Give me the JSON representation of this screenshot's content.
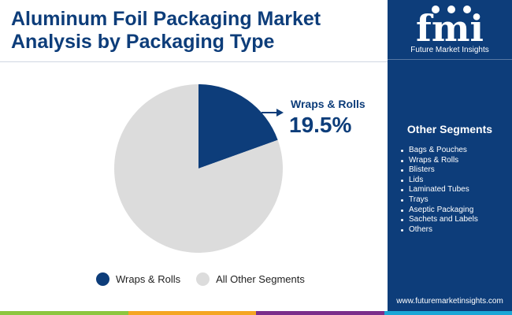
{
  "header": {
    "title_line1": "Aluminum Foil Packaging Market",
    "title_line2": "Analysis by Packaging Type"
  },
  "brand": {
    "logo_text": "fmi",
    "name": "Future Market Insights",
    "website": "www.futuremarketinsights.com"
  },
  "chart_data": {
    "type": "pie",
    "slices": [
      {
        "label": "Wraps & Rolls",
        "value": 19.5,
        "color": "#0d3d7a"
      },
      {
        "label": "All Other Segments",
        "value": 80.5,
        "color": "#dcdcdc"
      }
    ],
    "annotation": {
      "label": "Wraps & Rolls",
      "value_text": "19.5%"
    },
    "legend": [
      "Wraps & Rolls",
      "All Other Segments"
    ],
    "legend_position": "bottom"
  },
  "sidebar": {
    "heading": "Other Segments",
    "items": [
      "Bags & Pouches",
      "Wraps & Rolls",
      "Blisters",
      "Lids",
      "Laminated Tubes",
      "Trays",
      "Aseptic Packaging",
      "Sachets and Labels",
      "Others"
    ]
  },
  "colors": {
    "primary": "#0d3d7a",
    "secondary_slice": "#dcdcdc",
    "bottom_bar": [
      "#8dc63f",
      "#f5a623",
      "#7b2d8b",
      "#1aa6d6"
    ]
  }
}
